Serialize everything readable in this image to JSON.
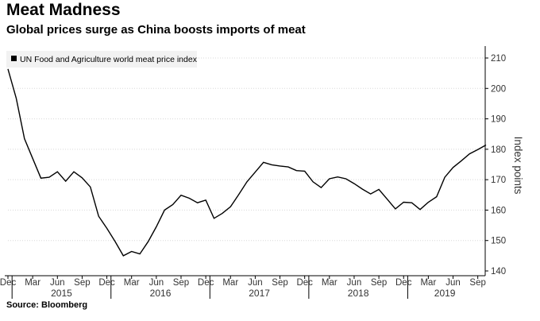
{
  "header": {
    "title": "Meat Madness",
    "subtitle": "Global prices surge as China boosts imports of meat"
  },
  "footer": {
    "source": "Source: Bloomberg"
  },
  "colors": {
    "line": "#000000",
    "grid": "#d8d8d8",
    "axis": "#000000",
    "legend_bg": "#f2f2f2"
  },
  "chart_data": {
    "type": "line",
    "title": "Meat Madness",
    "subtitle": "Global prices surge as China boosts imports of meat",
    "ylabel": "Index points",
    "ylim": [
      140,
      212
    ],
    "yticks": [
      140,
      150,
      160,
      170,
      180,
      190,
      200,
      210
    ],
    "y_axis_position": "right",
    "grid": "horizontal-dotted",
    "legend": {
      "placement": "top-left",
      "entries": [
        "UN Food and Agriculture world meat price index"
      ]
    },
    "x_tick_labels": [
      "Dec",
      "Mar",
      "Jun",
      "Sep",
      "Dec",
      "Mar",
      "Jun",
      "Sep",
      "Dec",
      "Mar",
      "Jun",
      "Sep",
      "Dec",
      "Mar",
      "Jun",
      "Sep",
      "Dec",
      "Mar",
      "Jun",
      "Sep"
    ],
    "x_tick_months": [
      0,
      3,
      6,
      9,
      12,
      15,
      18,
      21,
      24,
      27,
      30,
      33,
      36,
      39,
      42,
      45,
      48,
      51,
      54,
      57
    ],
    "years": [
      {
        "label": "2015",
        "start_month": 1,
        "end_month": 12
      },
      {
        "label": "2016",
        "start_month": 13,
        "end_month": 24
      },
      {
        "label": "2017",
        "start_month": 25,
        "end_month": 36
      },
      {
        "label": "2018",
        "start_month": 37,
        "end_month": 48
      },
      {
        "label": "2019",
        "start_month": 49,
        "end_month": 57
      }
    ],
    "series": [
      {
        "name": "UN Food and Agriculture world meat price index",
        "x_start": "Dec 2014",
        "values": [
          206.4,
          196.8,
          183.5,
          177.0,
          170.5,
          170.8,
          172.6,
          169.5,
          172.6,
          170.6,
          167.6,
          158.0,
          154.0,
          149.7,
          145.0,
          146.4,
          145.6,
          149.6,
          154.5,
          160.0,
          161.8,
          164.9,
          163.9,
          162.4,
          163.3,
          157.3,
          158.9,
          161.1,
          165.1,
          169.3,
          172.5,
          175.7,
          174.9,
          174.5,
          174.2,
          173.0,
          172.8,
          169.3,
          167.4,
          170.3,
          170.9,
          170.3,
          168.7,
          166.9,
          165.3,
          166.8,
          163.6,
          160.4,
          162.6,
          162.4,
          160.2,
          162.6,
          164.4,
          170.8,
          174.0,
          176.2,
          178.5,
          179.9,
          181.4
        ]
      }
    ]
  }
}
